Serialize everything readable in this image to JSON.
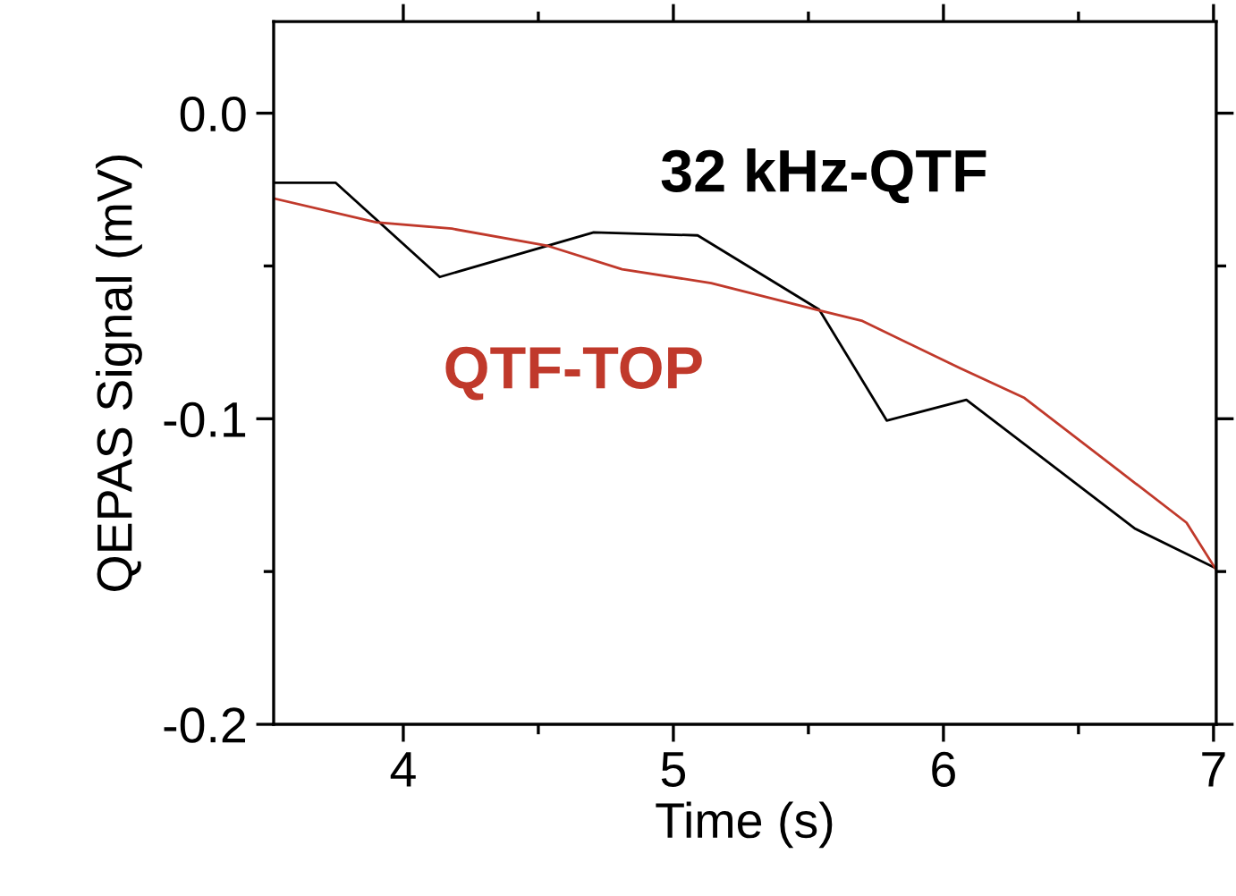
{
  "chart_data": {
    "type": "line",
    "xlabel": "Time (s)",
    "ylabel": "QEPAS Signal (mV)",
    "xlim": [
      3.52,
      7.01
    ],
    "ylim": [
      -0.2,
      0.03
    ],
    "xticks": [
      4,
      {
        "value": 4.5,
        "label": null
      },
      5,
      {
        "value": 5.5,
        "label": null
      },
      6,
      {
        "value": 6.5,
        "label": null
      },
      7
    ],
    "yticks": [
      -0.2,
      {
        "value": -0.15,
        "label": null
      },
      -0.1,
      {
        "value": -0.05,
        "label": null
      },
      {
        "value": 0,
        "label": "0.0"
      }
    ],
    "grid": false,
    "legend": false,
    "marker": "none",
    "line_style": "solid",
    "series": [
      {
        "name": "32 kHz-QTF",
        "color": "#000000",
        "x": [
          3.526,
          3.75,
          4.135,
          4.705,
          5.09,
          5.54,
          5.79,
          6.085,
          6.71,
          7.01
        ],
        "values": [
          -0.0228,
          -0.0228,
          -0.0536,
          -0.039,
          -0.04,
          -0.0643,
          -0.1006,
          -0.0938,
          -0.136,
          -0.149
        ]
      },
      {
        "name": "QTF-TOP",
        "color": "#c0392b",
        "x": [
          3.526,
          3.9,
          4.18,
          4.53,
          4.81,
          5.14,
          5.53,
          5.7,
          6.06,
          6.3,
          6.65,
          6.9,
          7.01
        ],
        "values": [
          -0.028,
          -0.0357,
          -0.0378,
          -0.0433,
          -0.0511,
          -0.0556,
          -0.0643,
          -0.068,
          -0.0834,
          -0.0932,
          -0.117,
          -0.134,
          -0.1495
        ]
      }
    ]
  }
}
